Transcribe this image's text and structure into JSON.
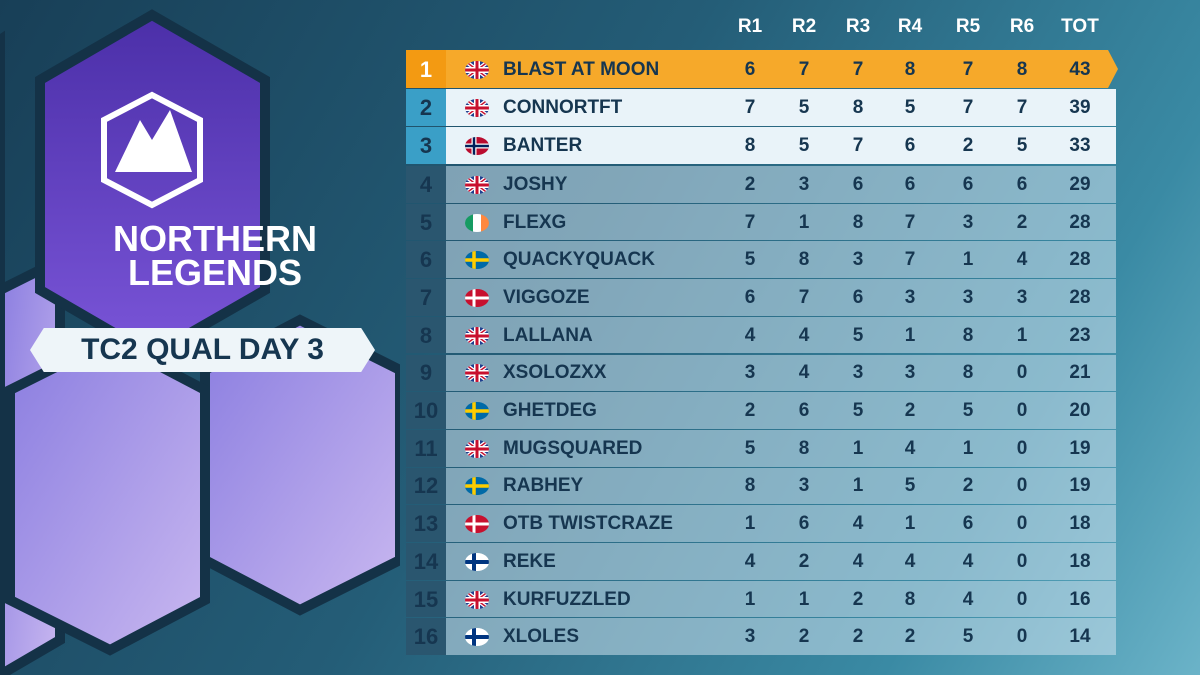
{
  "header": {
    "brand": [
      "NORTHERN",
      "LEGENDS"
    ],
    "event": "TC2 QUAL DAY 3"
  },
  "table": {
    "columns": [
      "R1",
      "R2",
      "R3",
      "R4",
      "R5",
      "R6",
      "TOT"
    ],
    "rows": [
      [
        1,
        "BLAST AT MOON",
        6,
        7,
        7,
        8,
        7,
        8,
        43
      ],
      [
        2,
        "CONNORTFT",
        7,
        5,
        8,
        5,
        7,
        7,
        39
      ],
      [
        3,
        "BANTER",
        8,
        5,
        7,
        6,
        2,
        5,
        33
      ],
      [
        4,
        "JOSHY",
        2,
        3,
        6,
        6,
        6,
        6,
        29
      ],
      [
        5,
        "FLEXG",
        7,
        1,
        8,
        7,
        3,
        2,
        28
      ],
      [
        6,
        "QUACKYQUACK",
        5,
        8,
        3,
        7,
        1,
        4,
        28
      ],
      [
        7,
        "VIGGOZE",
        6,
        7,
        6,
        3,
        3,
        3,
        28
      ],
      [
        8,
        "LALLANA",
        4,
        4,
        5,
        1,
        8,
        1,
        23
      ],
      [
        9,
        "XSOLOZXX",
        3,
        4,
        3,
        3,
        8,
        0,
        21
      ],
      [
        10,
        "GHETDEG",
        2,
        6,
        5,
        2,
        5,
        0,
        20
      ],
      [
        11,
        "MUGSQUARED",
        5,
        8,
        1,
        4,
        1,
        0,
        19
      ],
      [
        12,
        "RABHEY",
        8,
        3,
        1,
        5,
        2,
        0,
        19
      ],
      [
        13,
        "OTB TWISTCRAZE",
        1,
        6,
        4,
        1,
        6,
        0,
        18
      ],
      [
        14,
        "REKE",
        4,
        2,
        4,
        4,
        4,
        0,
        18
      ],
      [
        15,
        "KURFUZZLED",
        1,
        1,
        2,
        8,
        4,
        0,
        16
      ],
      [
        16,
        "XLOLES",
        3,
        2,
        2,
        2,
        5,
        0,
        14
      ]
    ]
  }
}
